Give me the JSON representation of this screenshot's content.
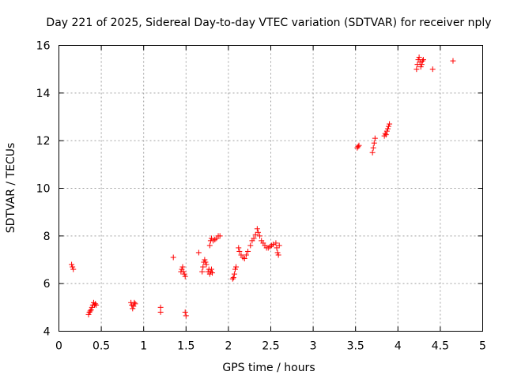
{
  "chart_data": {
    "type": "scatter",
    "title": "Day 221 of 2025, Sidereal Day-to-day VTEC variation (SDTVAR) for receiver nply",
    "xlabel": "GPS time / hours",
    "ylabel": "SDTVAR / TECUs",
    "xlim": [
      0,
      5
    ],
    "ylim": [
      4,
      16
    ],
    "x_ticks": [
      "0",
      "0.5",
      "1",
      "1.5",
      "2",
      "2.5",
      "3",
      "3.5",
      "4",
      "4.5",
      "5"
    ],
    "y_ticks": [
      "4",
      "6",
      "8",
      "10",
      "12",
      "14",
      "16"
    ],
    "grid": true,
    "marker": "+",
    "color": "#ff0000",
    "series": [
      {
        "name": "SDTVAR",
        "points": [
          [
            0.15,
            6.8
          ],
          [
            0.16,
            6.7
          ],
          [
            0.17,
            6.6
          ],
          [
            0.35,
            4.7
          ],
          [
            0.36,
            4.8
          ],
          [
            0.37,
            4.85
          ],
          [
            0.38,
            4.9
          ],
          [
            0.39,
            5.0
          ],
          [
            0.4,
            5.1
          ],
          [
            0.41,
            5.2
          ],
          [
            0.42,
            5.1
          ],
          [
            0.43,
            5.15
          ],
          [
            0.44,
            5.1
          ],
          [
            0.85,
            5.2
          ],
          [
            0.86,
            5.1
          ],
          [
            0.87,
            4.95
          ],
          [
            0.88,
            5.05
          ],
          [
            0.89,
            5.2
          ],
          [
            0.9,
            5.15
          ],
          [
            1.2,
            5.0
          ],
          [
            1.2,
            4.8
          ],
          [
            1.35,
            7.1
          ],
          [
            1.44,
            6.5
          ],
          [
            1.45,
            6.6
          ],
          [
            1.46,
            6.7
          ],
          [
            1.47,
            6.5
          ],
          [
            1.48,
            6.4
          ],
          [
            1.49,
            6.3
          ],
          [
            1.49,
            4.8
          ],
          [
            1.5,
            4.65
          ],
          [
            1.65,
            7.3
          ],
          [
            1.69,
            6.5
          ],
          [
            1.7,
            6.7
          ],
          [
            1.71,
            6.9
          ],
          [
            1.72,
            7.0
          ],
          [
            1.73,
            6.9
          ],
          [
            1.74,
            6.8
          ],
          [
            1.76,
            6.5
          ],
          [
            1.77,
            6.6
          ],
          [
            1.78,
            6.4
          ],
          [
            1.79,
            6.5
          ],
          [
            1.8,
            6.6
          ],
          [
            1.81,
            6.45
          ],
          [
            1.78,
            7.6
          ],
          [
            1.79,
            7.8
          ],
          [
            1.8,
            7.9
          ],
          [
            1.82,
            7.8
          ],
          [
            1.84,
            7.85
          ],
          [
            1.86,
            7.9
          ],
          [
            1.88,
            8.0
          ],
          [
            1.9,
            8.0
          ],
          [
            2.05,
            6.2
          ],
          [
            2.06,
            6.25
          ],
          [
            2.07,
            6.4
          ],
          [
            2.08,
            6.6
          ],
          [
            2.09,
            6.7
          ],
          [
            2.12,
            7.5
          ],
          [
            2.13,
            7.35
          ],
          [
            2.15,
            7.2
          ],
          [
            2.17,
            7.1
          ],
          [
            2.19,
            7.05
          ],
          [
            2.21,
            7.2
          ],
          [
            2.23,
            7.35
          ],
          [
            2.26,
            7.6
          ],
          [
            2.28,
            7.8
          ],
          [
            2.3,
            7.9
          ],
          [
            2.32,
            8.05
          ],
          [
            2.34,
            8.3
          ],
          [
            2.35,
            8.15
          ],
          [
            2.37,
            8.0
          ],
          [
            2.39,
            7.8
          ],
          [
            2.41,
            7.7
          ],
          [
            2.43,
            7.6
          ],
          [
            2.45,
            7.5
          ],
          [
            2.47,
            7.5
          ],
          [
            2.49,
            7.55
          ],
          [
            2.51,
            7.6
          ],
          [
            2.53,
            7.65
          ],
          [
            2.56,
            7.7
          ],
          [
            2.57,
            7.5
          ],
          [
            2.58,
            7.3
          ],
          [
            2.59,
            7.2
          ],
          [
            2.6,
            7.6
          ],
          [
            3.52,
            11.7
          ],
          [
            3.53,
            11.75
          ],
          [
            3.54,
            11.8
          ],
          [
            3.7,
            11.5
          ],
          [
            3.71,
            11.7
          ],
          [
            3.72,
            11.9
          ],
          [
            3.73,
            12.1
          ],
          [
            3.84,
            12.2
          ],
          [
            3.85,
            12.3
          ],
          [
            3.86,
            12.25
          ],
          [
            3.87,
            12.4
          ],
          [
            3.88,
            12.5
          ],
          [
            3.89,
            12.6
          ],
          [
            3.9,
            12.7
          ],
          [
            4.22,
            15.0
          ],
          [
            4.23,
            15.2
          ],
          [
            4.24,
            15.4
          ],
          [
            4.25,
            15.5
          ],
          [
            4.26,
            15.3
          ],
          [
            4.27,
            15.1
          ],
          [
            4.28,
            15.2
          ],
          [
            4.29,
            15.35
          ],
          [
            4.3,
            15.4
          ],
          [
            4.41,
            15.0
          ],
          [
            4.65,
            15.35
          ]
        ]
      }
    ]
  }
}
